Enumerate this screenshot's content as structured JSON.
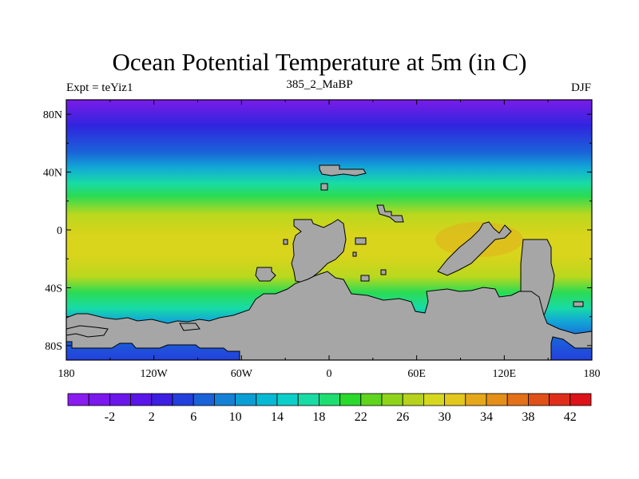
{
  "title": "Ocean Potential Temperature at 5m (in C)",
  "subtitle_left": "Expt = teYiz1",
  "subtitle_center": "385_2_MaBP",
  "subtitle_right": "DJF",
  "x_ticks": [
    "180",
    "120W",
    "60W",
    "0",
    "60E",
    "120E",
    "180"
  ],
  "y_ticks": [
    "80N",
    "40N",
    "0",
    "40S",
    "80S"
  ],
  "x_range": [
    -180,
    180
  ],
  "y_range": [
    -90,
    90
  ],
  "colorbar": {
    "labels": [
      "-2",
      "2",
      "6",
      "10",
      "14",
      "18",
      "22",
      "26",
      "30",
      "34",
      "38",
      "42"
    ],
    "colors": [
      "#8a1cf0",
      "#7a18ee",
      "#6a17ec",
      "#5a16e8",
      "#3c1fe0",
      "#2440dc",
      "#1b62d9",
      "#1481d6",
      "#0a9fd4",
      "#06b9d4",
      "#0ccfc9",
      "#18dba6",
      "#1ede72",
      "#29d92c",
      "#5fd61d",
      "#8fd41b",
      "#b6d21c",
      "#d6d81e",
      "#e2c71d",
      "#e6a81b",
      "#e48f1a",
      "#e2711a",
      "#e05019",
      "#de2e19",
      "#dc1318"
    ]
  },
  "colors": {
    "land": "#a6a6a6",
    "polar": "#7a1ce8",
    "subpolar": "#3025df",
    "midlat": "#12a7d6",
    "temperate": "#2bdb53",
    "subtropical": "#b9d81e",
    "tropical": "#d9d41c",
    "warm_pool": "#e0b31d"
  }
}
